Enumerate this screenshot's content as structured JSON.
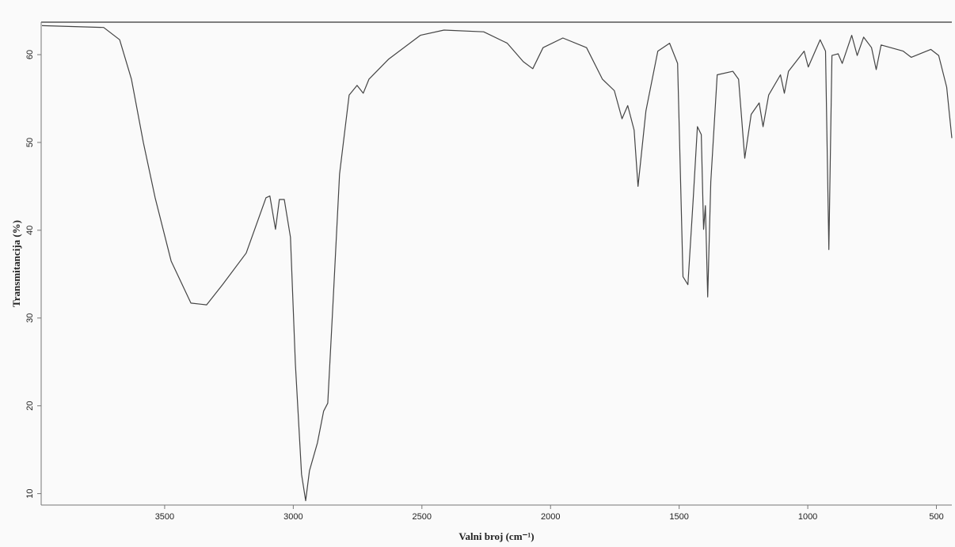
{
  "chart_data": {
    "type": "line",
    "xlabel": "Valni broj (cm⁻¹)",
    "ylabel": "Transmitancija (%)",
    "xlim": [
      3980,
      440
    ],
    "ylim": [
      8.7,
      63.7
    ],
    "xticks": [
      3500,
      3000,
      2500,
      2000,
      1500,
      1000,
      500
    ],
    "yticks": [
      10,
      20,
      30,
      40,
      50,
      60
    ],
    "color": "#444444",
    "x": [
      3977,
      3737,
      3675,
      3629,
      3583,
      3537,
      3475,
      3398,
      3337,
      3275,
      3183,
      3106,
      3091,
      3069,
      3054,
      3035,
      3011,
      2992,
      2968,
      2952,
      2937,
      2906,
      2882,
      2866,
      2845,
      2820,
      2783,
      2752,
      2728,
      2706,
      2629,
      2506,
      2414,
      2260,
      2168,
      2106,
      2069,
      2029,
      1952,
      1860,
      1798,
      1752,
      1722,
      1700,
      1675,
      1660,
      1629,
      1583,
      1537,
      1506,
      1485,
      1466,
      1445,
      1429,
      1414,
      1405,
      1398,
      1389,
      1377,
      1352,
      1291,
      1269,
      1245,
      1220,
      1189,
      1174,
      1152,
      1106,
      1091,
      1075,
      1014,
      998,
      952,
      931,
      918,
      906,
      882,
      866,
      829,
      808,
      783,
      752,
      734,
      715,
      629,
      598,
      522,
      491,
      460,
      440
    ],
    "values": [
      63.3,
      63.1,
      61.7,
      57.2,
      50,
      43.7,
      36.5,
      31.7,
      31.5,
      33.8,
      37.4,
      43.7,
      43.9,
      40.1,
      43.5,
      43.5,
      39.2,
      24.8,
      12.2,
      9.2,
      12.6,
      15.8,
      19.4,
      20.3,
      32,
      46.4,
      55.4,
      56.5,
      55.6,
      57.2,
      59.5,
      62.2,
      62.8,
      62.6,
      61.3,
      59.2,
      58.4,
      60.8,
      61.9,
      60.8,
      57.2,
      55.9,
      52.7,
      54.2,
      51.4,
      45,
      53.6,
      60.4,
      61.3,
      59,
      34.7,
      33.8,
      43.7,
      51.8,
      50.9,
      40.1,
      42.8,
      32.4,
      45.5,
      57.7,
      58.1,
      57.2,
      48.2,
      53.2,
      54.5,
      51.8,
      55.4,
      57.7,
      55.6,
      58.1,
      60.4,
      58.6,
      61.7,
      60.4,
      37.8,
      59.9,
      60.1,
      59,
      62.2,
      59.9,
      62,
      60.8,
      58.3,
      61.1,
      60.4,
      59.7,
      60.6,
      59.9,
      56.3,
      50.5
    ]
  }
}
